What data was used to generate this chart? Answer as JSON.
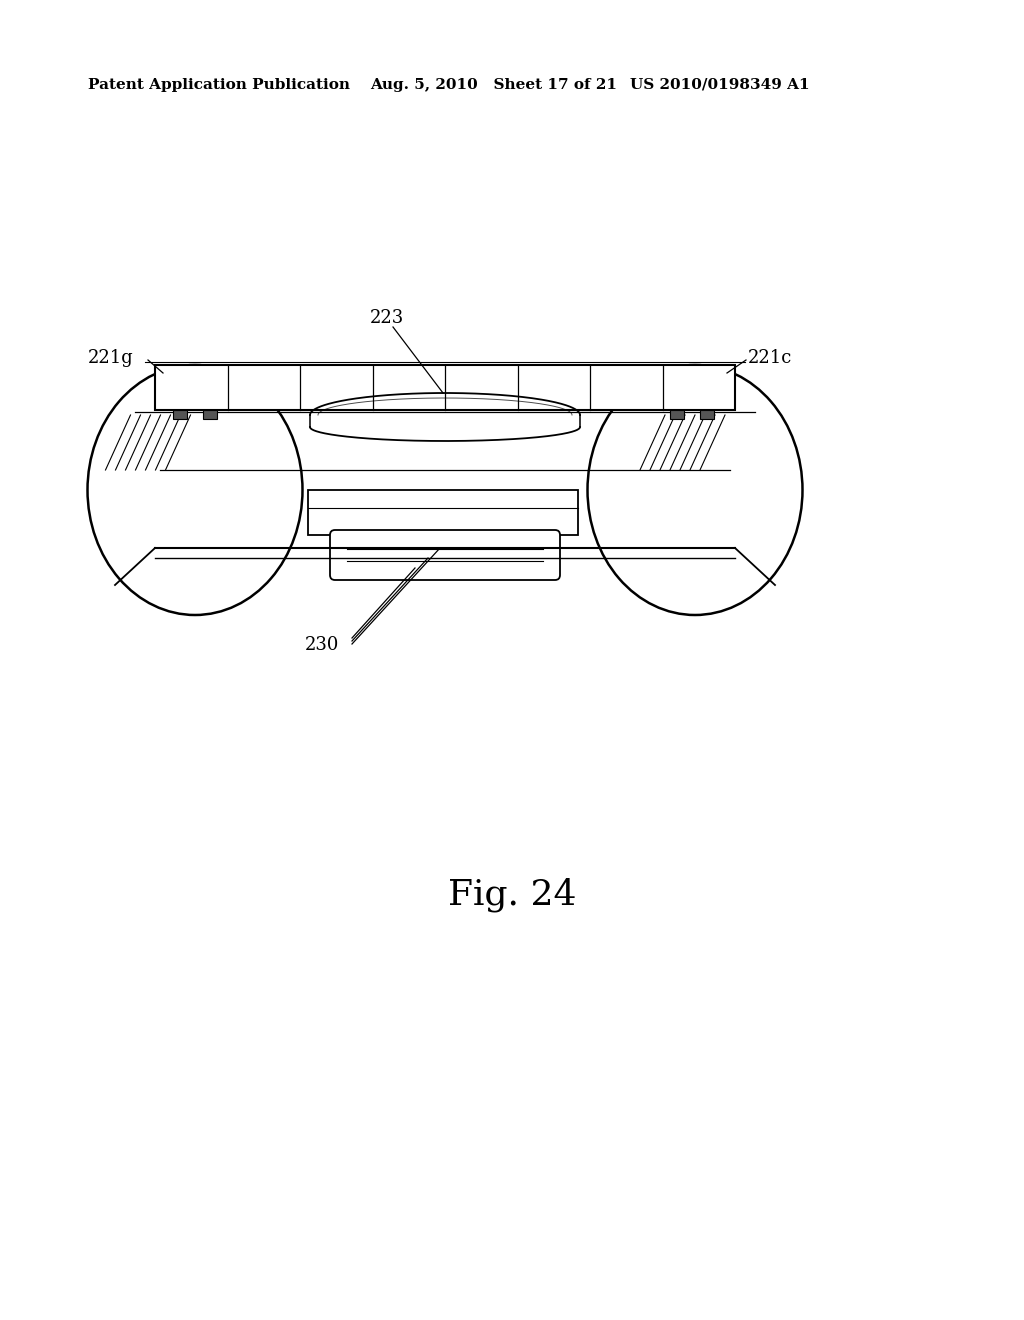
{
  "background_color": "#ffffff",
  "header_left": "Patent Application Publication",
  "header_mid": "Aug. 5, 2010   Sheet 17 of 21",
  "header_right": "US 2010/0198349 A1",
  "figure_label": "Fig. 24",
  "label_221g": "221g",
  "label_221c": "221c",
  "label_223": "223",
  "label_230": "230",
  "header_fontsize": 11,
  "label_fontsize": 13,
  "fig_label_fontsize": 26
}
